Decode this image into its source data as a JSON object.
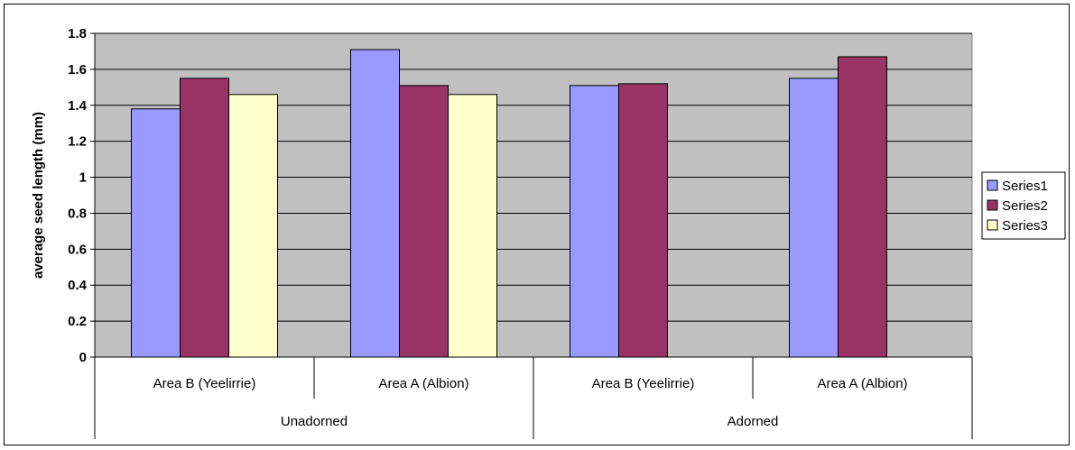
{
  "chart_data": {
    "type": "bar",
    "ylabel": "average seed length (mm)",
    "ylim": [
      0,
      1.8
    ],
    "yticks": [
      0,
      0.2,
      0.4,
      0.6,
      0.8,
      1,
      1.2,
      1.4,
      1.6,
      1.8
    ],
    "ytick_labels": [
      "0",
      "0.2",
      "0.4",
      "0.6",
      "0.8",
      "1",
      "1.2",
      "1.4",
      "1.6",
      "1.8"
    ],
    "grid": true,
    "plot_background": "#c0c0c0",
    "legend_position": "right",
    "categories": [
      "Area B (Yeelirrie)",
      "Area A (Albion)",
      "Area B (Yeelirrie)",
      "Area A (Albion)"
    ],
    "groups": [
      {
        "label": "Unadorned",
        "categories": [
          "Area B (Yeelirrie)",
          "Area A (Albion)"
        ]
      },
      {
        "label": "Adorned",
        "categories": [
          "Area B (Yeelirrie)",
          "Area A (Albion)"
        ]
      }
    ],
    "series": [
      {
        "name": "Series1",
        "color": "#9999ff",
        "values": [
          1.38,
          1.71,
          1.51,
          1.55
        ]
      },
      {
        "name": "Series2",
        "color": "#993366",
        "values": [
          1.55,
          1.51,
          1.52,
          1.67
        ]
      },
      {
        "name": "Series3",
        "color": "#ffffcc",
        "values": [
          1.46,
          1.46,
          null,
          null
        ]
      }
    ]
  }
}
